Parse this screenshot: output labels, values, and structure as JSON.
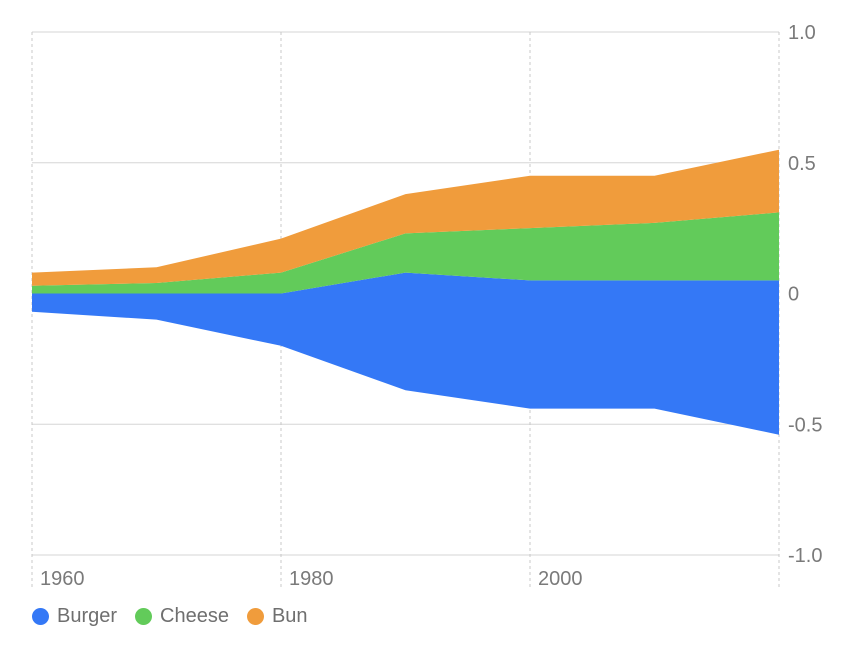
{
  "chart_data": {
    "type": "area",
    "stacked": true,
    "x": [
      1960,
      1970,
      1980,
      1990,
      2000,
      2010,
      2020
    ],
    "series": [
      {
        "name": "Burger",
        "color": "#3478f6",
        "lower": [
          -0.07,
          -0.1,
          -0.2,
          -0.37,
          -0.44,
          -0.44,
          -0.54
        ],
        "upper": [
          0.0,
          0.0,
          0.0,
          0.08,
          0.05,
          0.05,
          0.05
        ]
      },
      {
        "name": "Cheese",
        "color": "#62cb5a",
        "lower": [
          0.0,
          0.0,
          0.0,
          0.08,
          0.05,
          0.05,
          0.05
        ],
        "upper": [
          0.03,
          0.04,
          0.08,
          0.23,
          0.25,
          0.27,
          0.31
        ]
      },
      {
        "name": "Bun",
        "color": "#f09c3c",
        "lower": [
          0.03,
          0.04,
          0.08,
          0.23,
          0.25,
          0.27,
          0.31
        ],
        "upper": [
          0.08,
          0.1,
          0.21,
          0.38,
          0.45,
          0.45,
          0.55
        ]
      }
    ],
    "xlim": [
      1960,
      2020
    ],
    "ylim": [
      -1.0,
      1.0
    ],
    "x_ticks": [
      1960,
      1980,
      2000
    ],
    "x_tick_labels": [
      "1960",
      "1980",
      "2000"
    ],
    "y_ticks": [
      1.0,
      0.5,
      0,
      -0.5,
      -1.0
    ],
    "y_tick_labels": [
      "1.0",
      "0.5",
      "0",
      "-0.5",
      "-1.0"
    ],
    "grid": true,
    "y_axis_position": "right",
    "legend_position": "bottom-left"
  }
}
